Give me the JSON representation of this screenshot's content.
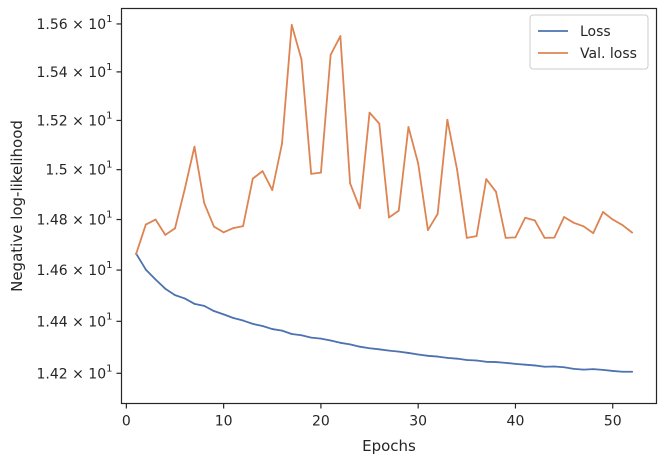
{
  "chart_data": {
    "type": "line",
    "xlabel": "Epochs",
    "ylabel": "Negative log-likelihood",
    "xlim": [
      -0.5,
      54.5
    ],
    "ylim": [
      14.085,
      15.665
    ],
    "log_y": true,
    "grid": false,
    "legend_position": "top-right",
    "x_ticks": [
      0,
      10,
      20,
      30,
      40,
      50
    ],
    "x_tick_labels": [
      "0",
      "10",
      "20",
      "30",
      "40",
      "50"
    ],
    "y_ticks": [
      14.2,
      14.4,
      14.6,
      14.8,
      15.0,
      15.2,
      15.4,
      15.6
    ],
    "y_tick_labels": [
      {
        "mantissa": "1.42",
        "exp": "1"
      },
      {
        "mantissa": "1.44",
        "exp": "1"
      },
      {
        "mantissa": "1.46",
        "exp": "1"
      },
      {
        "mantissa": "1.48",
        "exp": "1"
      },
      {
        "mantissa": "1.5",
        "exp": "1"
      },
      {
        "mantissa": "1.52",
        "exp": "1"
      },
      {
        "mantissa": "1.54",
        "exp": "1"
      },
      {
        "mantissa": "1.56",
        "exp": "1"
      }
    ],
    "y_tick_times": "×",
    "y_tick_base": "10",
    "x": [
      1,
      2,
      3,
      4,
      5,
      6,
      7,
      8,
      9,
      10,
      11,
      12,
      13,
      14,
      15,
      16,
      17,
      18,
      19,
      20,
      21,
      22,
      23,
      24,
      25,
      26,
      27,
      28,
      29,
      30,
      31,
      32,
      33,
      34,
      35,
      36,
      37,
      38,
      39,
      40,
      41,
      42,
      43,
      44,
      45,
      46,
      47,
      48,
      49,
      50,
      51,
      52
    ],
    "series": [
      {
        "name": "Loss",
        "color": "#4c72b0",
        "values": [
          14.665,
          14.602,
          14.563,
          14.527,
          14.502,
          14.489,
          14.468,
          14.46,
          14.44,
          14.427,
          14.413,
          14.403,
          14.39,
          14.382,
          14.37,
          14.364,
          14.351,
          14.346,
          14.337,
          14.333,
          14.326,
          14.317,
          14.311,
          14.302,
          14.296,
          14.292,
          14.287,
          14.283,
          14.278,
          14.272,
          14.267,
          14.264,
          14.259,
          14.256,
          14.251,
          14.249,
          14.244,
          14.243,
          14.24,
          14.236,
          14.233,
          14.23,
          14.225,
          14.226,
          14.223,
          14.217,
          14.214,
          14.216,
          14.213,
          14.209,
          14.206,
          14.206
        ]
      },
      {
        "name": "Val. loss",
        "color": "#dd8452",
        "values": [
          14.663,
          14.78,
          14.8,
          14.739,
          14.765,
          14.921,
          15.093,
          14.866,
          14.772,
          14.749,
          14.766,
          14.774,
          14.964,
          14.994,
          14.918,
          15.105,
          15.596,
          15.452,
          14.983,
          14.988,
          15.471,
          15.549,
          14.945,
          14.845,
          15.232,
          15.187,
          14.808,
          14.835,
          15.173,
          15.025,
          14.758,
          14.822,
          15.203,
          15.0,
          14.727,
          14.734,
          14.962,
          14.911,
          14.727,
          14.729,
          14.807,
          14.796,
          14.727,
          14.728,
          14.81,
          14.787,
          14.773,
          14.746,
          14.83,
          14.8,
          14.778,
          14.748
        ]
      }
    ]
  }
}
